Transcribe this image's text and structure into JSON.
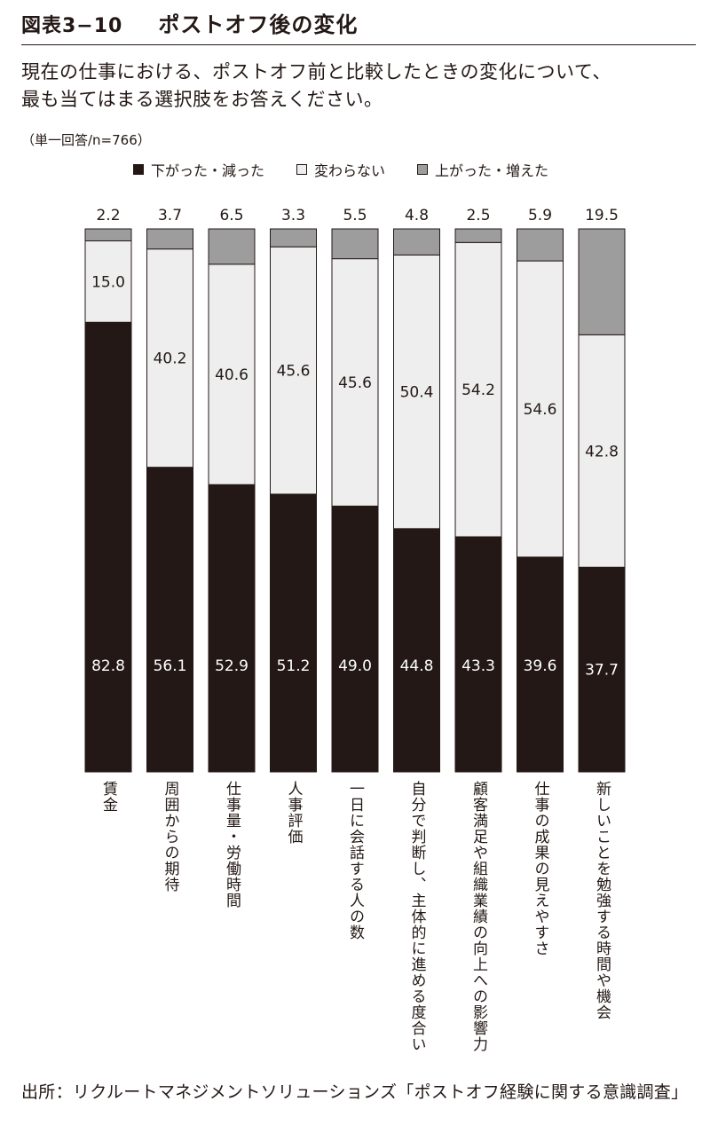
{
  "figure": {
    "number": "図表3−10",
    "title": "ポストオフ後の変化"
  },
  "question": {
    "line1": "現在の仕事における、ポストオフ前と比較したときの変化について、",
    "line2": "最も当てはまる選択肢をお答えください。"
  },
  "sample_note": "（単一回答/n=766）",
  "source": "出所：リクルートマネジメントソリューションズ「ポストオフ経験に関する意識調査」",
  "colors": {
    "decreased": "#231815",
    "unchanged": "#eeeeee",
    "increased": "#9d9d9d",
    "outline": "#231815"
  },
  "chart_data": {
    "type": "bar",
    "stacked": true,
    "orientation": "vertical",
    "unit": "%",
    "ylim": [
      0,
      100
    ],
    "grid": false,
    "legend_position": "top",
    "categories": [
      "賃金",
      "周囲からの期待",
      "仕事量・労働時間",
      "人事評価",
      "一日に会話する人の数",
      "自分で判断し、主体的に進める度合い",
      "顧客満足や組織業績の向上への影響力",
      "仕事の成果の見えやすさ",
      "新しいことを勉強する時間や機会"
    ],
    "series": [
      {
        "name": "下がった・減った",
        "values": [
          82.8,
          56.1,
          52.9,
          51.2,
          49.0,
          44.8,
          43.3,
          39.6,
          37.7
        ]
      },
      {
        "name": "変わらない",
        "values": [
          15.0,
          40.2,
          40.6,
          45.6,
          45.6,
          50.4,
          54.2,
          54.6,
          42.8
        ]
      },
      {
        "name": "上がった・増えた",
        "values": [
          2.2,
          3.7,
          6.5,
          3.3,
          5.5,
          4.8,
          2.5,
          5.9,
          19.5
        ]
      }
    ]
  }
}
